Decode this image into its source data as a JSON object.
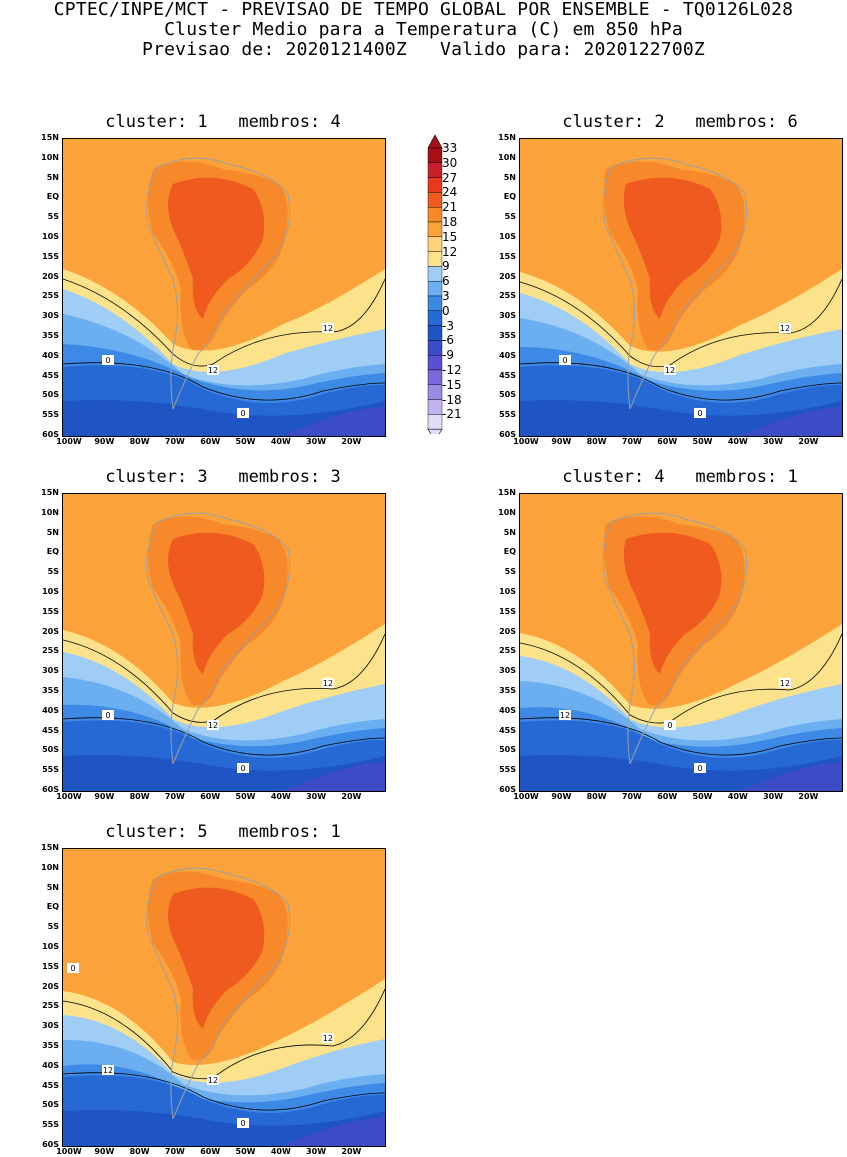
{
  "header": {
    "line1": "CPTEC/INPE/MCT - PREVISAO DE TEMPO GLOBAL POR ENSEMBLE - TQ0126L028",
    "line2": "Cluster Medio para a Temperatura (C) em 850 hPa",
    "line3": "Previsao de: 2020121400Z   Valido para: 2020122700Z"
  },
  "lat_labels": [
    "15N",
    "10N",
    "5N",
    "EQ",
    "5S",
    "10S",
    "15S",
    "20S",
    "25S",
    "30S",
    "35S",
    "40S",
    "45S",
    "50S",
    "55S",
    "60S"
  ],
  "lon_labels": [
    "100W",
    "90W",
    "80W",
    "70W",
    "60W",
    "50W",
    "40W",
    "30W",
    "20W"
  ],
  "clusters": [
    {
      "title": "cluster: 1   membros: 4",
      "contour_labels": [
        "12",
        "12",
        "0",
        "0"
      ]
    },
    {
      "title": "cluster: 2   membros: 6",
      "contour_labels": [
        "12",
        "12",
        "0",
        "0"
      ]
    },
    {
      "title": "cluster: 3   membros: 3",
      "contour_labels": [
        "12",
        "12",
        "0",
        "0"
      ]
    },
    {
      "title": "cluster: 4   membros: 1",
      "contour_labels": [
        "12",
        "0",
        "12",
        "0"
      ]
    },
    {
      "title": "cluster: 5   membros: 1",
      "contour_labels": [
        "12",
        "12",
        "12",
        "0",
        "0"
      ]
    }
  ],
  "colorbar": {
    "labels": [
      "33",
      "30",
      "27",
      "24",
      "21",
      "18",
      "15",
      "12",
      "9",
      "6",
      "3",
      "0",
      "-3",
      "-6",
      "-9",
      "-12",
      "-15",
      "-18",
      "-21"
    ],
    "colors": [
      "#a50f15",
      "#c8202a",
      "#e8381e",
      "#ef5a1e",
      "#f7892a",
      "#fba33a",
      "#fdd27a",
      "#fde28c",
      "#9fcdf5",
      "#6baff0",
      "#3c89e6",
      "#2669d4",
      "#1e55c2",
      "#3b4cc6",
      "#5a4ed2",
      "#7a68dd",
      "#9c8ae5",
      "#c0b3ee",
      "#e2dcf6"
    ]
  },
  "chart_data": {
    "type": "heatmap",
    "variable": "Temperatura (C) em 850 hPa",
    "levels": [
      -21,
      -18,
      -15,
      -12,
      -9,
      -6,
      -3,
      0,
      3,
      6,
      9,
      12,
      15,
      18,
      21,
      24,
      27,
      30,
      33
    ],
    "lat_range": [
      -60,
      15
    ],
    "lon_range": [
      -100,
      -10
    ],
    "labeled_contours": [
      0,
      12
    ]
  }
}
